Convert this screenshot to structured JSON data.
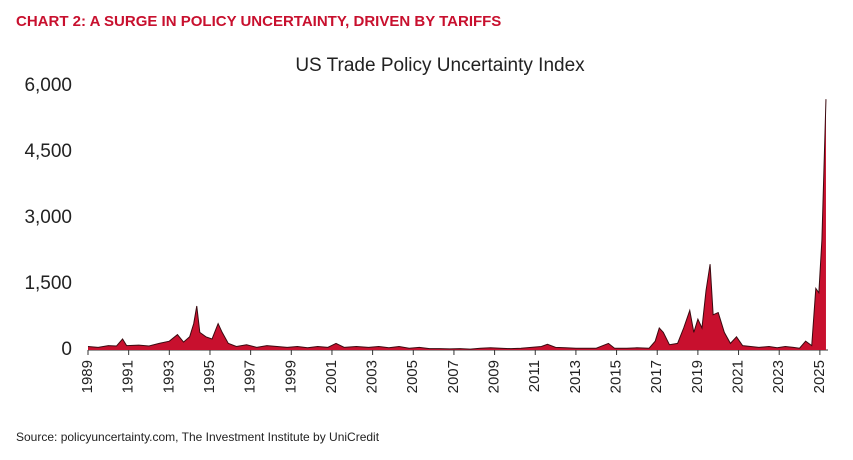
{
  "chart_data": {
    "type": "area",
    "title": "CHART 2: A SURGE IN POLICY UNCERTAINTY, DRIVEN BY TARIFFS",
    "subtitle": "US Trade Policy Uncertainty Index",
    "source": "Source: policyuncertainty.com, The Investment Institute by UniCredit",
    "color": "#c8102e",
    "x": [
      1989.0,
      1989.5,
      1990.0,
      1990.4,
      1990.7,
      1990.9,
      1991.5,
      1992.0,
      1992.5,
      1993.0,
      1993.4,
      1993.7,
      1994.0,
      1994.2,
      1994.35,
      1994.5,
      1994.8,
      1995.1,
      1995.4,
      1995.6,
      1995.9,
      1996.3,
      1996.8,
      1997.3,
      1997.8,
      1998.3,
      1998.8,
      1999.3,
      1999.8,
      2000.3,
      2000.8,
      2001.2,
      2001.6,
      2002.2,
      2002.8,
      2003.3,
      2003.8,
      2004.3,
      2004.8,
      2005.3,
      2005.8,
      2006.3,
      2006.8,
      2007.3,
      2007.8,
      2008.3,
      2008.8,
      2009.3,
      2009.8,
      2010.3,
      2010.8,
      2011.3,
      2011.6,
      2012.0,
      2012.5,
      2013.0,
      2013.5,
      2014.0,
      2014.6,
      2014.9,
      2015.5,
      2016.0,
      2016.6,
      2016.9,
      2017.1,
      2017.3,
      2017.6,
      2018.0,
      2018.3,
      2018.6,
      2018.8,
      2019.0,
      2019.2,
      2019.4,
      2019.6,
      2019.75,
      2020.0,
      2020.3,
      2020.6,
      2020.9,
      2021.2,
      2021.6,
      2022.0,
      2022.5,
      2022.9,
      2023.3,
      2023.7,
      2024.0,
      2024.3,
      2024.6,
      2024.8,
      2024.95,
      2025.1,
      2025.3
    ],
    "values": [
      80,
      60,
      100,
      90,
      250,
      100,
      110,
      90,
      150,
      200,
      350,
      180,
      300,
      600,
      1000,
      400,
      300,
      250,
      600,
      400,
      150,
      80,
      120,
      60,
      100,
      80,
      60,
      80,
      50,
      80,
      60,
      150,
      60,
      80,
      60,
      80,
      50,
      80,
      40,
      60,
      30,
      30,
      25,
      30,
      20,
      40,
      50,
      40,
      30,
      40,
      60,
      80,
      130,
      60,
      50,
      40,
      40,
      40,
      150,
      40,
      40,
      50,
      40,
      200,
      500,
      400,
      120,
      150,
      500,
      900,
      400,
      700,
      500,
      1350,
      1950,
      800,
      850,
      400,
      150,
      300,
      100,
      80,
      60,
      80,
      50,
      80,
      60,
      40,
      200,
      100,
      1400,
      1300,
      2500,
      5700
    ],
    "xlim": [
      1989,
      2025.4
    ],
    "xticks": [
      1989,
      1991,
      1993,
      1995,
      1997,
      1999,
      2001,
      2003,
      2005,
      2007,
      2009,
      2011,
      2013,
      2015,
      2017,
      2019,
      2021,
      2023,
      2025
    ],
    "ylim": [
      0,
      6000
    ],
    "yticks": [
      0,
      {
        "value": 1500,
        "label": "1,500"
      },
      {
        "value": 3000,
        "label": "3,000"
      },
      {
        "value": 4500,
        "label": "4,500"
      },
      {
        "value": 6000,
        "label": "6,000"
      }
    ],
    "grid": false
  }
}
